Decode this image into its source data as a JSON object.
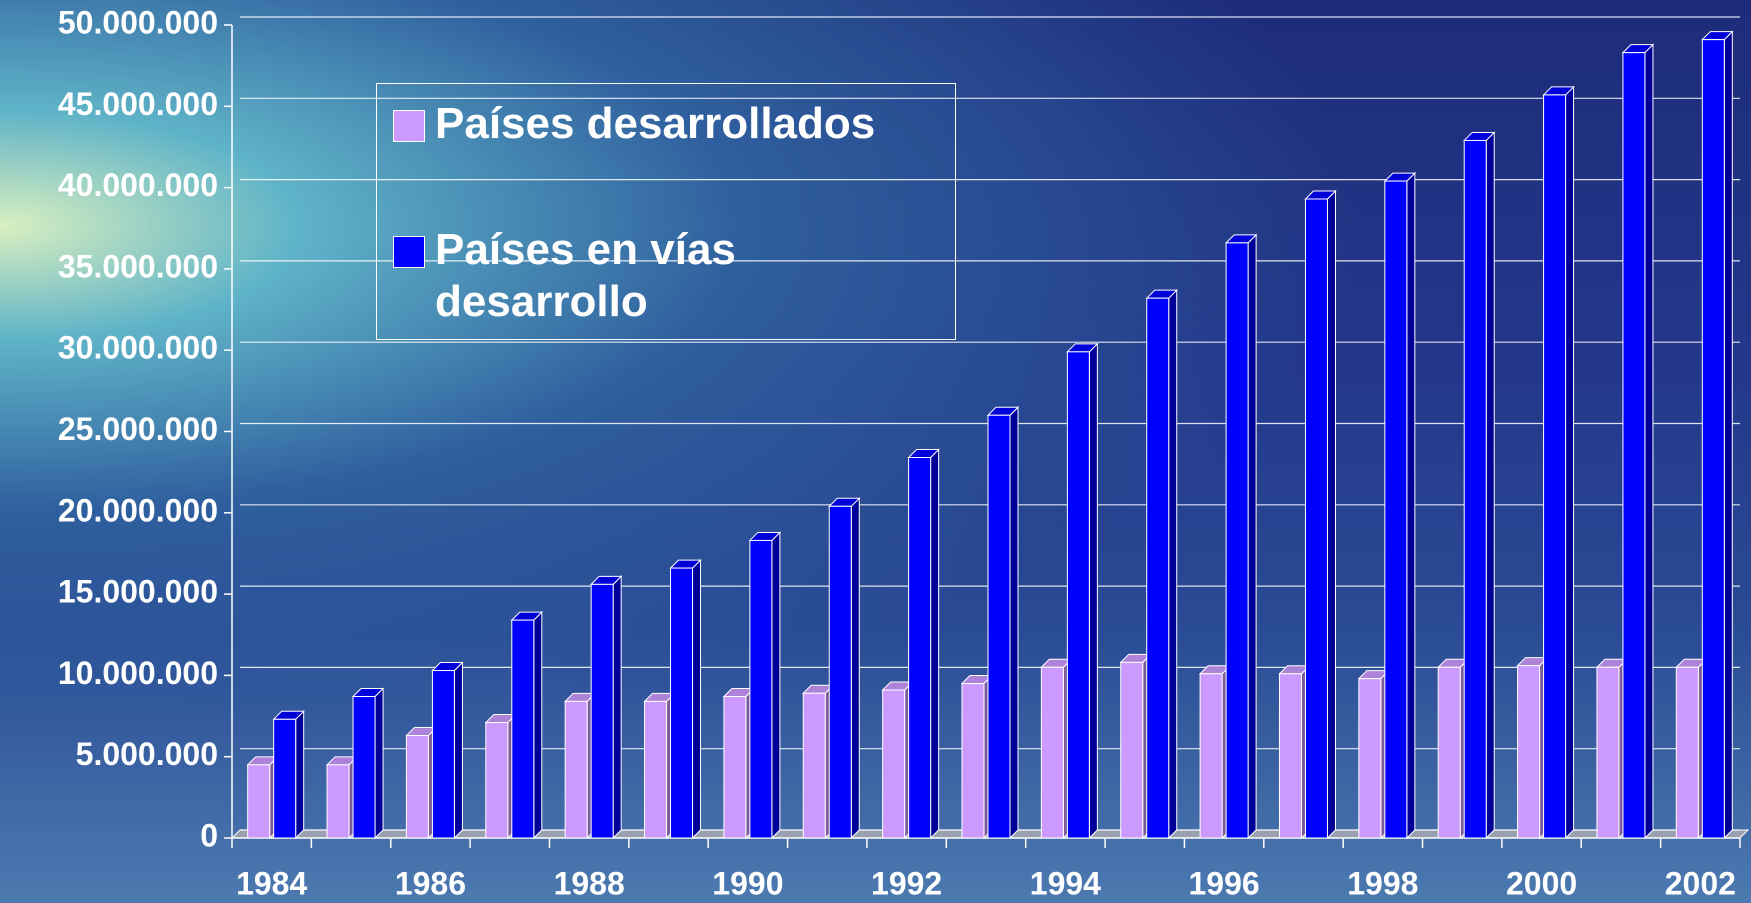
{
  "chart_data": {
    "type": "bar3d",
    "categories": [
      "1984",
      null,
      "1986",
      null,
      "1988",
      null,
      "1990",
      null,
      "1992",
      null,
      "1994",
      null,
      "1996",
      null,
      "1998",
      null,
      "2000",
      null,
      "2002"
    ],
    "series": [
      {
        "name": "Países desarrollados",
        "color": "#cc99ff",
        "values": [
          4500000,
          4500000,
          6300000,
          7100000,
          8400000,
          8400000,
          8700000,
          8900000,
          9100000,
          9500000,
          10500000,
          10800000,
          10100000,
          10100000,
          9800000,
          10500000,
          10600000,
          10500000,
          10500000
        ]
      },
      {
        "name": "Países en vías desarrollo",
        "color": "#0000ff",
        "values": [
          7300000,
          8700000,
          10300000,
          13400000,
          15600000,
          16600000,
          18300000,
          20400000,
          23400000,
          26000000,
          29900000,
          33200000,
          36600000,
          39300000,
          40400000,
          42900000,
          45700000,
          48300000,
          49100000
        ]
      }
    ],
    "ylim": [
      0,
      50000000
    ],
    "yticks": [
      0,
      {
        "value": 5000000,
        "label": "5.000.000"
      },
      {
        "value": 10000000,
        "label": "10.000.000"
      },
      {
        "value": 15000000,
        "label": "15.000.000"
      },
      {
        "value": 20000000,
        "label": "20.000.000"
      },
      {
        "value": 25000000,
        "label": "25.000.000"
      },
      {
        "value": 30000000,
        "label": "30.000.000"
      },
      {
        "value": 35000000,
        "label": "35.000.000"
      },
      {
        "value": 40000000,
        "label": "40.000.000"
      },
      {
        "value": 45000000,
        "label": "45.000.000"
      },
      {
        "value": 50000000,
        "label": "50.000.000"
      }
    ],
    "grid": true
  }
}
